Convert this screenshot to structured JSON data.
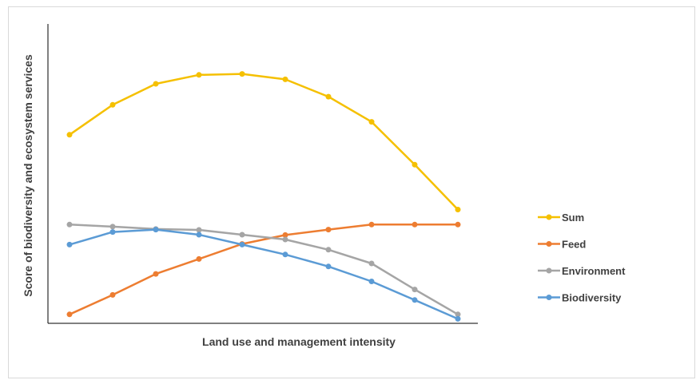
{
  "chart_data": {
    "type": "line",
    "title": "",
    "xlabel": "Land use and management intensity",
    "ylabel": "Score of biodiversity and ecosystem services",
    "x": [
      1,
      2,
      3,
      4,
      5,
      6,
      7,
      8,
      9,
      10
    ],
    "ylim": [
      0,
      100
    ],
    "grid": false,
    "legend_position": "right",
    "series": [
      {
        "name": "Sum",
        "color": "#f5c000",
        "values": [
          63,
          73,
          80,
          83,
          83.3,
          81.5,
          75.7,
          67.3,
          53,
          38
        ]
      },
      {
        "name": "Feed",
        "color": "#ed7d31",
        "values": [
          3,
          9.5,
          16.5,
          21.5,
          26.5,
          29.5,
          31.3,
          33,
          33,
          33
        ]
      },
      {
        "name": "Environment",
        "color": "#a5a5a5",
        "values": [
          33,
          32.3,
          31.5,
          31.2,
          29.6,
          28,
          24.6,
          20,
          11.3,
          3
        ]
      },
      {
        "name": "Biodiversity",
        "color": "#5b9bd5",
        "values": [
          26.3,
          30.5,
          31.3,
          29.6,
          26.3,
          23,
          19,
          14,
          7.8,
          1.5
        ]
      }
    ]
  }
}
